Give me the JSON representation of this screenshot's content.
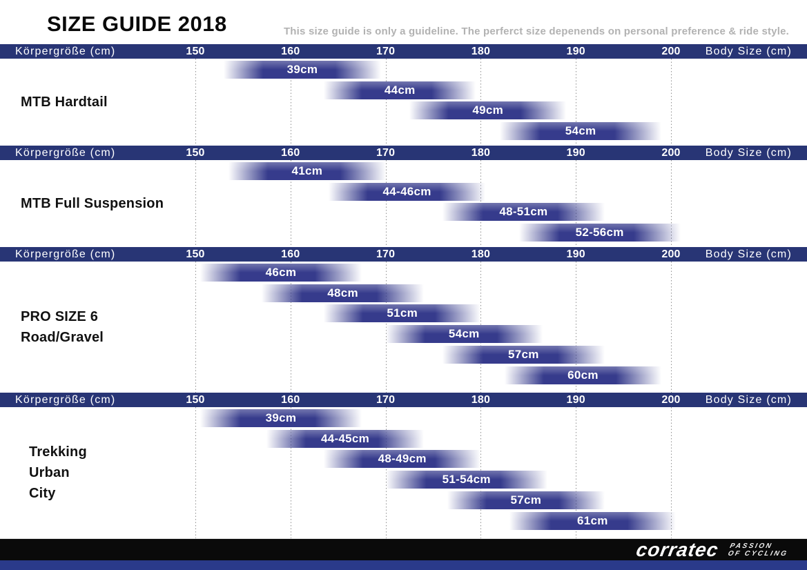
{
  "title": "SIZE GUIDE 2018",
  "disclaimer": "This size guide is only a guideline. The perferct size depenends on personal preference & ride style.",
  "footer": {
    "brand": "corratec",
    "tagline_line1": "PASSION",
    "tagline_line2": "OF CYCLING"
  },
  "colors": {
    "header_bar": "#283575",
    "bar_core": "#363b8c",
    "grid_dot": "#8f8f8f",
    "subtitle_gray": "#b2b2b2",
    "footer_black": "#0a0a0a",
    "footer_blue": "#2a3a8a",
    "bar_label_text": "#ffffff",
    "section_label_text": "#111111"
  },
  "chart_data": {
    "type": "bar",
    "subtype": "horizontal-range-bars",
    "x_axis": {
      "label_left": "Körpergröße (cm)",
      "label_right": "Body Size (cm)",
      "ticks": [
        150,
        160,
        170,
        180,
        190,
        200
      ],
      "range": [
        150,
        200
      ],
      "unit": "cm",
      "gridlines": "dotted-vertical"
    },
    "sections": [
      {
        "name_lines": [
          "MTB Hardtail"
        ],
        "bars": [
          {
            "label": "39cm",
            "from": 153,
            "to": 169.5
          },
          {
            "label": "44cm",
            "from": 163.5,
            "to": 179.5
          },
          {
            "label": "49cm",
            "from": 172.5,
            "to": 189
          },
          {
            "label": "54cm",
            "from": 182,
            "to": 199
          }
        ]
      },
      {
        "name_lines": [
          "MTB Full Suspension"
        ],
        "bars": [
          {
            "label": "41cm",
            "from": 153.5,
            "to": 170
          },
          {
            "label": "44-46cm",
            "from": 164,
            "to": 180.5
          },
          {
            "label": "48-51cm",
            "from": 176,
            "to": 193
          },
          {
            "label": "52-56cm",
            "from": 184,
            "to": 201
          }
        ]
      },
      {
        "name_lines": [
          "PRO SIZE 6",
          "Road/Gravel"
        ],
        "bars": [
          {
            "label": "46cm",
            "from": 150.5,
            "to": 167.5
          },
          {
            "label": "48cm",
            "from": 157,
            "to": 174
          },
          {
            "label": "51cm",
            "from": 163.5,
            "to": 180
          },
          {
            "label": "54cm",
            "from": 170,
            "to": 186.5
          },
          {
            "label": "57cm",
            "from": 176,
            "to": 193
          },
          {
            "label": "60cm",
            "from": 182.5,
            "to": 199
          }
        ]
      },
      {
        "name_lines": [
          "Trekking",
          "Urban",
          "City"
        ],
        "bars": [
          {
            "label": "39cm",
            "from": 150.5,
            "to": 167.5
          },
          {
            "label": "44-45cm",
            "from": 157.5,
            "to": 174
          },
          {
            "label": "48-49cm",
            "from": 163.5,
            "to": 180
          },
          {
            "label": "51-54cm",
            "from": 170,
            "to": 187
          },
          {
            "label": "57cm",
            "from": 176.5,
            "to": 193
          },
          {
            "label": "61cm",
            "from": 183,
            "to": 200.5
          }
        ]
      }
    ]
  }
}
